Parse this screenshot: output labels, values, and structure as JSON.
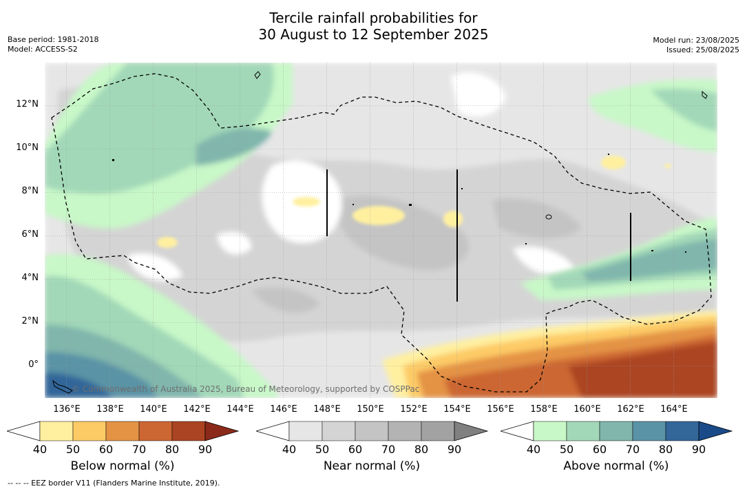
{
  "header": {
    "title_line1": "Tercile rainfall probabilities for",
    "title_line2": "30 August to 12 September 2025",
    "base_period": "Base period: 1981-2018",
    "model": "Model: ACCESS-S2",
    "model_run": "Model run: 23/08/2025",
    "issued": "Issued: 25/08/2025"
  },
  "map": {
    "longitude_ticks": [
      "136°E",
      "138°E",
      "140°E",
      "142°E",
      "144°E",
      "146°E",
      "148°E",
      "150°E",
      "152°E",
      "154°E",
      "156°E",
      "158°E",
      "160°E",
      "162°E",
      "164°E"
    ],
    "latitude_ticks": [
      "12°N",
      "10°N",
      "8°N",
      "6°N",
      "4°N",
      "2°N",
      "0°"
    ],
    "lon_range": [
      135,
      166
    ],
    "lat_range": [
      -1.5,
      14
    ],
    "credit": "© Commonwealth of Australia 2025, Bureau of Meteorology, supported by COSPPac",
    "footnote": "-- -- -- EEZ border V11 (Flanders Marine Institute, 2019)."
  },
  "colorbars": [
    {
      "label": "Below normal (%)",
      "ticks": [
        "40",
        "50",
        "60",
        "70",
        "80",
        "90"
      ],
      "colors": [
        "#ffffff",
        "#fff0a0",
        "#fdcb66",
        "#e49345",
        "#cc6633",
        "#ab4422",
        "#8b2a1a"
      ]
    },
    {
      "label": "Near normal (%)",
      "ticks": [
        "40",
        "50",
        "60",
        "70",
        "80",
        "90"
      ],
      "colors": [
        "#ffffff",
        "#e6e6e6",
        "#d4d4d4",
        "#c4c4c4",
        "#b3b3b3",
        "#a2a2a2",
        "#808080"
      ]
    },
    {
      "label": "Above normal (%)",
      "ticks": [
        "40",
        "50",
        "60",
        "70",
        "80",
        "90"
      ],
      "colors": [
        "#ffffff",
        "#c8f8c8",
        "#a2d8b8",
        "#80b6ac",
        "#5a93a6",
        "#336699",
        "#1a4a88"
      ]
    }
  ]
}
